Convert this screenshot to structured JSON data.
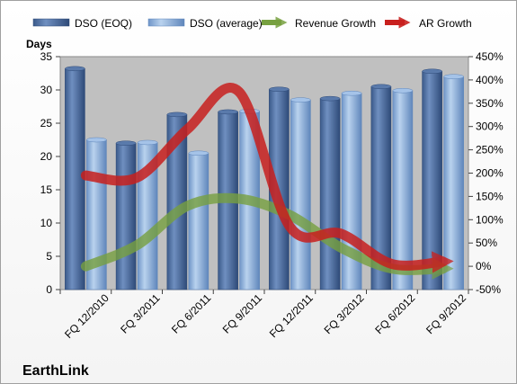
{
  "chart_data": {
    "type": "bar",
    "title": "",
    "company_label": "EarthLink",
    "ylabel": "Days",
    "ylim": [
      0,
      35
    ],
    "y_ticks": [
      0,
      5,
      10,
      15,
      20,
      25,
      30,
      35
    ],
    "y2lim": [
      -50,
      450
    ],
    "y2_ticks": [
      "-50%",
      "0%",
      "50%",
      "100%",
      "150%",
      "200%",
      "250%",
      "300%",
      "350%",
      "400%",
      "450%"
    ],
    "y2_tick_values": [
      -50,
      0,
      50,
      100,
      150,
      200,
      250,
      300,
      350,
      400,
      450
    ],
    "categories": [
      "FQ 12/2010",
      "FQ 3/2011",
      "FQ 6/2011",
      "FQ 9/2011",
      "FQ 12/2011",
      "FQ 3/2012",
      "FQ 6/2012",
      "FQ 9/2012"
    ],
    "legend_position": "top",
    "grid": false,
    "series": [
      {
        "name": "DSO (EOQ)",
        "type": "bar",
        "axis": "left",
        "color": "#4a6b9e",
        "values": [
          33.2,
          22.0,
          26.3,
          26.7,
          30.1,
          28.7,
          30.5,
          32.8
        ]
      },
      {
        "name": "DSO (average)",
        "type": "bar",
        "axis": "left",
        "color": "#8fb2de",
        "values": [
          22.5,
          22.1,
          20.5,
          26.8,
          28.5,
          29.5,
          29.9,
          32.0
        ]
      },
      {
        "name": "Revenue Growth",
        "type": "line",
        "axis": "right",
        "color": "#77a040",
        "values": [
          0,
          45,
          130,
          145,
          110,
          40,
          -5,
          -5
        ]
      },
      {
        "name": "AR Growth",
        "type": "line",
        "axis": "right",
        "color": "#c8201e",
        "values": [
          195,
          190,
          295,
          375,
          85,
          70,
          5,
          10
        ]
      }
    ],
    "plot_background": "#c0c0c0"
  }
}
